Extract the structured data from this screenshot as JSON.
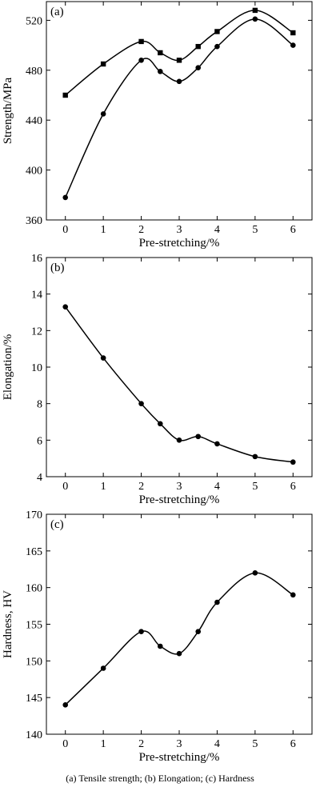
{
  "chart_data": [
    {
      "type": "line",
      "panel_label": "(a)",
      "xlabel": "Pre-stretching/%",
      "ylabel": "Strength/MPa",
      "x_ticks": [
        0,
        1,
        2,
        3,
        4,
        5,
        6
      ],
      "y_ticks": [
        360,
        400,
        440,
        480,
        520
      ],
      "xlim": [
        -0.5,
        6.5
      ],
      "ylim": [
        360,
        535
      ],
      "series": [
        {
          "marker": "square",
          "x": [
            0,
            1,
            2,
            2.5,
            3,
            3.5,
            4,
            5,
            6
          ],
          "y": [
            460,
            485,
            503,
            494,
            488,
            499,
            511,
            528,
            510
          ]
        },
        {
          "marker": "circle",
          "x": [
            0,
            1,
            2,
            2.5,
            3,
            3.5,
            4,
            5,
            6
          ],
          "y": [
            378,
            445,
            488,
            479,
            471,
            482,
            499,
            521,
            500
          ]
        }
      ]
    },
    {
      "type": "line",
      "panel_label": "(b)",
      "xlabel": "Pre-stretching/%",
      "ylabel": "Elongation/%",
      "x_ticks": [
        0,
        1,
        2,
        3,
        4,
        5,
        6
      ],
      "y_ticks": [
        4,
        6,
        8,
        10,
        12,
        14,
        16
      ],
      "xlim": [
        -0.5,
        6.5
      ],
      "ylim": [
        4,
        16
      ],
      "series": [
        {
          "marker": "circle",
          "x": [
            0,
            1,
            2,
            2.5,
            3,
            3.5,
            4,
            5,
            6
          ],
          "y": [
            13.3,
            10.5,
            8.0,
            6.9,
            6.0,
            6.2,
            5.8,
            5.1,
            4.8
          ]
        }
      ]
    },
    {
      "type": "line",
      "panel_label": "(c)",
      "xlabel": "Pre-stretching/%",
      "ylabel": "Hardness, HV",
      "x_ticks": [
        0,
        1,
        2,
        3,
        4,
        5,
        6
      ],
      "y_ticks": [
        140,
        145,
        150,
        155,
        160,
        165,
        170
      ],
      "xlim": [
        -0.5,
        6.5
      ],
      "ylim": [
        140,
        170
      ],
      "series": [
        {
          "marker": "circle",
          "x": [
            0,
            1,
            2,
            2.5,
            3,
            3.5,
            4,
            5,
            6
          ],
          "y": [
            144,
            149,
            154,
            152,
            151,
            154,
            158,
            162,
            159
          ]
        }
      ]
    }
  ],
  "caption": "(a) Tensile strength; (b)  Elongation; (c) Hardness"
}
